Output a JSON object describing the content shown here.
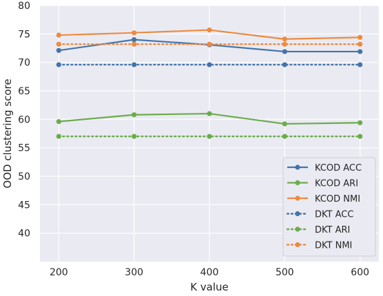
{
  "chart_data": {
    "type": "line",
    "xlabel": "K value",
    "ylabel": "OOD clustering score",
    "x": [
      200,
      300,
      400,
      500,
      600
    ],
    "xticks": [
      "200",
      "300",
      "400",
      "500",
      "600"
    ],
    "ylim": [
      35,
      80
    ],
    "yticks": [
      "40",
      "45",
      "50",
      "55",
      "60",
      "65",
      "70",
      "75",
      "80"
    ],
    "grid": true,
    "legend_position": "lower-right",
    "series": [
      {
        "name": "KCOD ACC",
        "values": [
          72.1,
          74.0,
          73.1,
          71.9,
          71.9
        ],
        "color": "#4474a8",
        "style": "solid"
      },
      {
        "name": "KCOD ARI",
        "values": [
          59.6,
          60.8,
          61.0,
          59.2,
          59.4
        ],
        "color": "#6aac4a",
        "style": "solid"
      },
      {
        "name": "KCOD NMI",
        "values": [
          74.8,
          75.2,
          75.7,
          74.1,
          74.4
        ],
        "color": "#ee8a3e",
        "style": "solid"
      },
      {
        "name": "DKT ACC",
        "values": [
          69.6,
          69.6,
          69.6,
          69.6,
          69.6
        ],
        "color": "#4474a8",
        "style": "dotted"
      },
      {
        "name": "DKT ARI",
        "values": [
          57.0,
          57.0,
          57.0,
          57.0,
          57.0
        ],
        "color": "#6aac4a",
        "style": "dotted"
      },
      {
        "name": "DKT NMI",
        "values": [
          73.2,
          73.2,
          73.2,
          73.2,
          73.2
        ],
        "color": "#ee8a3e",
        "style": "dotted"
      }
    ],
    "colors": {
      "background": "#eaeaf2",
      "grid": "#ffffff",
      "text": "#262626"
    }
  }
}
